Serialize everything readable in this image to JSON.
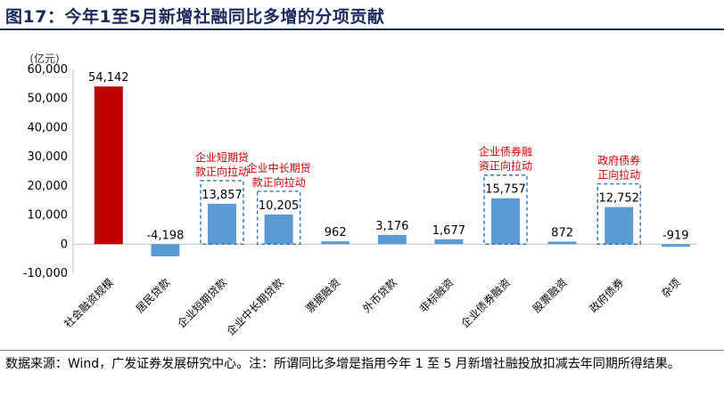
{
  "title": "图17：今年1至5月新增社融同比多增的分项贡献",
  "footer": "数据来源：Wind，广发证券发展研究中心。注：所谓同比多增是指用今年 1 至 5 月新增社融投放扣减去年同期所得结果。",
  "colors": {
    "highlight": "#c00000",
    "bar": "#5b9bd5",
    "annotation": "#c00000",
    "dashed_box": "#2e75b6",
    "title": "#1a2b5c"
  },
  "chart_data": {
    "type": "bar",
    "ylabel": "(亿元)",
    "ylim": [
      -10000,
      60000
    ],
    "yticks": [
      -10000,
      0,
      10000,
      20000,
      30000,
      40000,
      50000,
      60000
    ],
    "ytick_labels": [
      "-10,000",
      "0",
      "10,000",
      "20,000",
      "30,000",
      "40,000",
      "50,000",
      "60,000"
    ],
    "categories": [
      "社会融资规模",
      "居民贷款",
      "企业短期贷款",
      "企业中长期贷款",
      "票据融资",
      "外币贷款",
      "非标融资",
      "企业债券融资",
      "股票融资",
      "政府债券",
      "杂项"
    ],
    "values": [
      54142,
      -4198,
      13857,
      10205,
      962,
      3176,
      1677,
      15757,
      872,
      12752,
      -919
    ],
    "data_labels": [
      "54,142",
      "-4,198",
      "13,857",
      "10,205",
      "962",
      "3,176",
      "1,677",
      "15,757",
      "872",
      "12,752",
      "-919"
    ],
    "highlight_index": 0,
    "grid": false,
    "legend": "none",
    "annotations": [
      {
        "index": 2,
        "lines": [
          "企业短期贷",
          "款正向拉动"
        ]
      },
      {
        "index": 3,
        "lines": [
          "企业中长期贷",
          "款正向拉动"
        ]
      },
      {
        "index": 7,
        "lines": [
          "企业债券融",
          "资正向拉动"
        ]
      },
      {
        "index": 9,
        "lines": [
          "政府债券",
          "正向拉动"
        ]
      }
    ]
  }
}
